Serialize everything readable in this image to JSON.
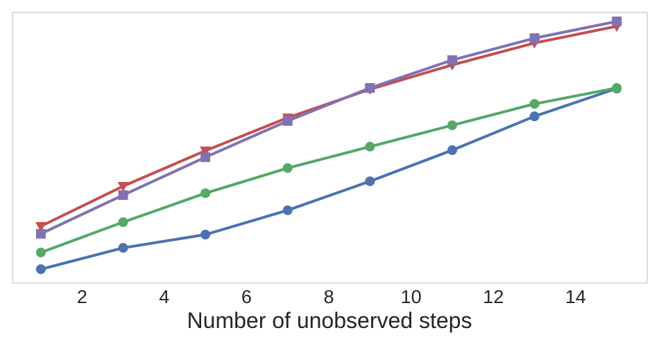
{
  "figure": {
    "background": "#ffffff",
    "plot_border_color": "#d4d4d4",
    "text_color": "#262626"
  },
  "chart_data": {
    "type": "line",
    "title": "",
    "xlabel": "Number of unobserved steps",
    "ylabel": "",
    "x": [
      1,
      3,
      5,
      7,
      9,
      11,
      13,
      15
    ],
    "x_tick_labels": [
      "2",
      "4",
      "6",
      "8",
      "10",
      "12",
      "14"
    ],
    "x_ticks": [
      2,
      4,
      6,
      8,
      10,
      12,
      14
    ],
    "xlim": [
      0.31,
      15.74
    ],
    "ylim": [
      0,
      1
    ],
    "y_ticks_visible": false,
    "grid": false,
    "legend": "none",
    "series": [
      {
        "name": "blue-circle",
        "marker": "circle",
        "color": "#4C72B0",
        "values": [
          0.051,
          0.13,
          0.179,
          0.269,
          0.376,
          0.491,
          0.616,
          0.719
        ]
      },
      {
        "name": "green-circle",
        "marker": "circle",
        "color": "#55A868",
        "values": [
          0.113,
          0.225,
          0.332,
          0.425,
          0.504,
          0.583,
          0.662,
          0.721
        ]
      },
      {
        "name": "red-triangle-down",
        "marker": "triangle-down",
        "color": "#C44E52",
        "values": [
          0.21,
          0.358,
          0.489,
          0.611,
          0.716,
          0.806,
          0.887,
          0.949
        ]
      },
      {
        "name": "purple-square",
        "marker": "square",
        "color": "#8172B2",
        "values": [
          0.182,
          0.325,
          0.465,
          0.599,
          0.721,
          0.824,
          0.905,
          0.967
        ]
      }
    ]
  }
}
